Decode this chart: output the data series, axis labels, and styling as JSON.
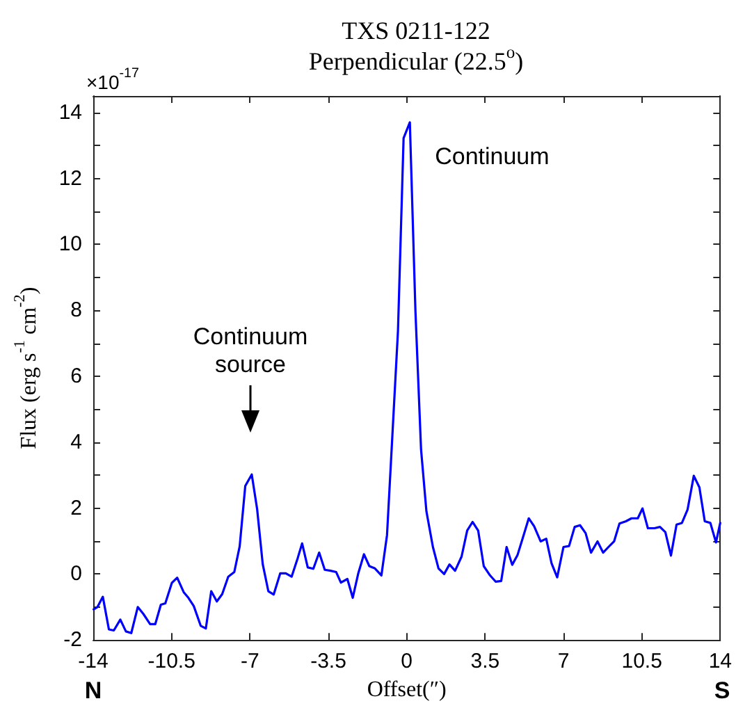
{
  "chart_data": {
    "type": "line",
    "title": "TXS 0211-122",
    "subtitle": "Perpendicular (22.5$^{o}$)",
    "xlabel": "Offset(″)",
    "ylabel": "Flux (erg s$^{-1}$ cm$^{-2}$)",
    "x": [
      -13.98,
      -13.81,
      -13.57,
      -13.3,
      -13.08,
      -12.79,
      -12.54,
      -12.3,
      -12.01,
      -11.76,
      -11.46,
      -11.23,
      -10.98,
      -10.78,
      -10.49,
      -10.25,
      -9.96,
      -9.75,
      -9.51,
      -9.2,
      -8.97,
      -8.73,
      -8.48,
      -8.24,
      -7.97,
      -7.7,
      -7.46,
      -7.21,
      -6.92,
      -6.68,
      -6.43,
      -6.18,
      -5.94,
      -5.65,
      -5.4,
      -5.14,
      -4.87,
      -4.67,
      -4.42,
      -4.17,
      -3.91,
      -3.66,
      -3.4,
      -3.15,
      -2.94,
      -2.65,
      -2.41,
      -2.16,
      -1.91,
      -1.67,
      -1.42,
      -1.13,
      -0.88,
      -0.64,
      -0.39,
      -0.14,
      0.14,
      0.39,
      0.64,
      0.88,
      1.17,
      1.42,
      1.67,
      1.91,
      2.16,
      2.45,
      2.7,
      2.94,
      3.19,
      3.44,
      3.72,
      3.97,
      4.22,
      4.46,
      4.71,
      4.95,
      5.2,
      5.45,
      5.69,
      5.98,
      6.23,
      6.47,
      6.72,
      7.0,
      7.25,
      7.5,
      7.74,
      7.99,
      8.23,
      8.52,
      8.77,
      9.01,
      9.26,
      9.5,
      9.79,
      10.04,
      10.32,
      10.53,
      10.77,
      11.06,
      11.31,
      11.55,
      11.8,
      12.05,
      12.29,
      12.54,
      12.82,
      13.07,
      13.31,
      13.56,
      13.81,
      14.0
    ],
    "series": [
      {
        "color": "#0000ff",
        "values": [
          -1.07,
          -1.0,
          -0.69,
          -1.68,
          -1.71,
          -1.38,
          -1.74,
          -1.79,
          -1.0,
          -1.21,
          -1.52,
          -1.52,
          -0.93,
          -0.89,
          -0.27,
          -0.11,
          -0.55,
          -0.72,
          -0.97,
          -1.57,
          -1.65,
          -0.52,
          -0.83,
          -0.61,
          -0.08,
          0.06,
          0.84,
          2.67,
          3.02,
          1.97,
          0.3,
          -0.52,
          -0.62,
          0.02,
          0.02,
          -0.08,
          0.48,
          0.93,
          0.2,
          0.16,
          0.65,
          0.13,
          0.1,
          0.06,
          -0.26,
          -0.15,
          -0.72,
          0.03,
          0.6,
          0.24,
          0.17,
          -0.04,
          1.18,
          4.21,
          7.38,
          13.22,
          13.7,
          7.96,
          3.78,
          1.9,
          0.82,
          0.17,
          0.0,
          0.29,
          0.1,
          0.53,
          1.32,
          1.58,
          1.32,
          0.24,
          -0.04,
          -0.23,
          -0.21,
          0.82,
          0.28,
          0.58,
          1.13,
          1.69,
          1.45,
          0.99,
          1.07,
          0.32,
          -0.1,
          0.82,
          0.85,
          1.43,
          1.48,
          1.24,
          0.65,
          0.99,
          0.65,
          0.82,
          0.99,
          1.53,
          1.6,
          1.69,
          1.69,
          1.99,
          1.39,
          1.39,
          1.43,
          1.27,
          0.56,
          1.5,
          1.55,
          1.95,
          2.98,
          2.63,
          1.6,
          1.55,
          0.96,
          1.55
        ]
      }
    ],
    "xlim": [
      -14,
      14
    ],
    "xticks": [
      -14,
      -10.5,
      -7,
      -3.5,
      0,
      3.5,
      7,
      10.5,
      14
    ],
    "ylim": [
      -2,
      14.5
    ],
    "yticks": [
      -2,
      {
        "value": -1,
        "label": null
      },
      0,
      {
        "value": 1,
        "label": null
      },
      2,
      {
        "value": 3,
        "label": null
      },
      4,
      {
        "value": 5,
        "label": null
      },
      6,
      {
        "value": 7,
        "label": null
      },
      8,
      {
        "value": 9,
        "label": null
      },
      10,
      {
        "value": 11,
        "label": null
      },
      12,
      {
        "value": 13,
        "label": null
      },
      14
    ],
    "annotations": [
      "×10$^{-17}$",
      {
        "text": "Continuum",
        "x": 0.14,
        "y": 13.7
      },
      "Continuum\nsource",
      "N",
      "S"
    ]
  }
}
